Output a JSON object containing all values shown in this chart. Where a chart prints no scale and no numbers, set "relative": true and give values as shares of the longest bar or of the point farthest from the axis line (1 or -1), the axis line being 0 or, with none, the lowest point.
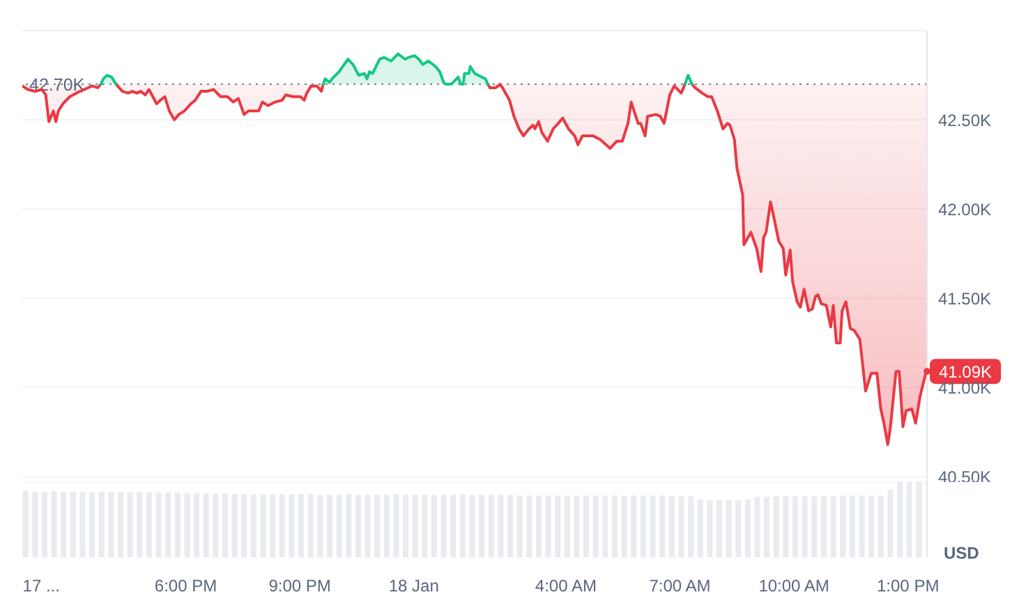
{
  "chart_data": [
    {
      "type": "line",
      "xlim": [
        "--01-17T13:42",
        "--01-18T13:30"
      ],
      "ylim": [
        40.47,
        43.0
      ],
      "yticks": [
        {
          "value": 40.5,
          "label": "40.50K"
        },
        {
          "value": 41,
          "label": "41.00K"
        },
        {
          "value": 41.5,
          "label": "41.50K"
        },
        {
          "value": 42,
          "label": "42.00K"
        },
        {
          "value": 42.5,
          "label": "42.50K"
        }
      ],
      "grid": "y",
      "tick_labels": "y",
      "series": [
        {
          "color": "#ea3943",
          "x": [
            "--01-17T13:42",
            "--01-17T13:51",
            "--01-17T14:02",
            "--01-17T14:13",
            "--01-17T14:19",
            "--01-17T14:24",
            "--01-17T14:31",
            "--01-17T14:35",
            "--01-17T14:39",
            "--01-17T14:46",
            "--01-17T14:57",
            "--01-17T15:13",
            "--01-17T15:26",
            "--01-17T15:32",
            "--01-17T15:41",
            "--01-17T15:46",
            "--01-17T15:50",
            "--01-17T16:10",
            "--01-17T16:20",
            "--01-17T16:29",
            "--01-17T16:36",
            "--01-17T16:43",
            "--01-17T16:49",
            "--01-17T16:56",
            "--01-17T17:02",
            "--01-17T17:14",
            "--01-17T17:20",
            "--01-17T17:27",
            "--01-17T17:34",
            "--01-17T17:42",
            "--01-17T17:49",
            "--01-17T17:58",
            "--01-17T18:08",
            "--01-17T18:15",
            "--01-17T18:24",
            "--01-17T18:33",
            "--01-17T18:44",
            "--01-17T18:55",
            "--01-17T19:06",
            "--01-17T19:15",
            "--01-17T19:23",
            "--01-17T19:32",
            "--01-17T19:39",
            "--01-17T19:55",
            "--01-17T20:01",
            "--01-17T20:10",
            "--01-17T20:21",
            "--01-17T20:32",
            "--01-17T20:38",
            "--01-17T20:49",
            "--01-17T21:01",
            "--01-17T21:07",
            "--01-17T21:11",
            "--01-17T21:18",
            "--01-17T21:27",
            "--01-17T21:34",
            "--01-17T21:37",
            "--01-17T21:40",
            "--01-18T01:57",
            "--01-18T02:00",
            "--01-18T02:09",
            "--01-18T02:13",
            "--01-18T02:16",
            "--01-18T02:18",
            "--01-18T02:20",
            "--01-18T02:31",
            "--01-18T02:38",
            "--01-18T02:46",
            "--01-18T02:53",
            "--01-18T03:02",
            "--01-18T03:08",
            "--01-18T03:11",
            "--01-18T03:17",
            "--01-18T03:22",
            "--01-18T03:31",
            "--01-18T03:40",
            "--01-18T03:48",
            "--01-18T03:55",
            "--01-18T04:04",
            "--01-18T04:14",
            "--01-18T04:19",
            "--01-18T04:26",
            "--01-18T04:32",
            "--01-18T04:43",
            "--01-18T04:54",
            "--01-18T05:10",
            "--01-18T05:20",
            "--01-18T05:29",
            "--01-18T05:38",
            "--01-18T05:43",
            "--01-18T05:54",
            "--01-18T05:58",
            "--01-18T06:05",
            "--01-18T06:09",
            "--01-18T06:22",
            "--01-18T06:29",
            "--01-18T06:35",
            "--01-18T06:44",
            "--01-18T06:51",
            "--01-18T07:02",
            "--01-18T07:08",
            "--01-18T07:13",
            "--01-18T07:19",
            "--01-18T07:24",
            "--01-18T07:35",
            "--01-18T07:44",
            "--01-18T07:50",
            "--01-18T07:59",
            "--01-18T08:08",
            "--01-18T08:15",
            "--01-18T08:19",
            "--01-18T08:26",
            "--01-18T08:30",
            "--01-18T08:39",
            "--01-18T08:41",
            "--01-18T08:52",
            "--01-18T09:01",
            "--01-18T09:08",
            "--01-18T09:12",
            "--01-18T09:16",
            "--01-18T09:23",
            "--01-18T09:29",
            "--01-18T09:36",
            "--01-18T09:43",
            "--01-18T09:47",
            "--01-18T09:54",
            "--01-18T09:58",
            "--01-18T10:05",
            "--01-18T10:10",
            "--01-18T10:16",
            "--01-18T10:23",
            "--01-18T10:29",
            "--01-18T10:34",
            "--01-18T10:38",
            "--01-18T10:43",
            "--01-18T10:51",
            "--01-18T10:58",
            "--01-18T11:02",
            "--01-18T11:07",
            "--01-18T11:13",
            "--01-18T11:16",
            "--01-18T11:22",
            "--01-18T11:29",
            "--01-18T11:35",
            "--01-18T11:44",
            "--01-18T11:53",
            "--01-18T12:02",
            "--01-18T12:11",
            "--01-18T12:17",
            "--01-18T12:22",
            "--01-18T12:28",
            "--01-18T12:32",
            "--01-18T12:41",
            "--01-18T12:46",
            "--01-18T12:52",
            "--01-18T12:57",
            "--01-18T13:06",
            "--01-18T13:12",
            "--01-18T13:19",
            "--01-18T13:28",
            "--01-18T13:30"
          ],
          "values": [
            42.69,
            42.67,
            42.66,
            42.67,
            42.64,
            42.49,
            42.55,
            42.49,
            42.55,
            42.59,
            42.63,
            42.66,
            42.68,
            42.69,
            42.68,
            42.7,
            null,
            42.7,
            42.66,
            42.65,
            42.66,
            42.65,
            42.66,
            42.64,
            42.67,
            42.59,
            42.61,
            42.63,
            42.55,
            42.5,
            42.53,
            42.55,
            42.59,
            42.61,
            42.66,
            42.66,
            42.67,
            42.63,
            42.63,
            42.6,
            42.62,
            42.53,
            42.55,
            42.55,
            42.6,
            42.58,
            42.6,
            42.61,
            42.64,
            42.63,
            42.63,
            42.61,
            42.65,
            42.69,
            42.69,
            42.66,
            42.7,
            null,
            42.7,
            42.68,
            42.68,
            42.69,
            42.7,
            42.69,
            42.68,
            42.61,
            42.52,
            42.45,
            42.41,
            42.45,
            42.47,
            42.45,
            42.49,
            42.43,
            42.38,
            42.45,
            42.48,
            42.51,
            42.45,
            42.41,
            42.36,
            42.41,
            42.41,
            42.41,
            42.39,
            42.34,
            42.38,
            42.38,
            42.48,
            42.6,
            42.48,
            42.48,
            42.41,
            42.52,
            42.53,
            42.52,
            42.48,
            42.64,
            42.69,
            42.65,
            42.7,
            null,
            42.7,
            42.68,
            42.65,
            42.63,
            42.63,
            42.55,
            42.45,
            42.48,
            42.47,
            42.39,
            42.23,
            42.08,
            41.8,
            41.87,
            41.78,
            41.65,
            41.84,
            41.87,
            42.04,
            41.94,
            41.82,
            41.78,
            41.63,
            41.77,
            41.59,
            41.48,
            41.45,
            41.55,
            41.43,
            41.44,
            41.51,
            41.52,
            41.47,
            41.46,
            41.34,
            41.46,
            41.25,
            41.25,
            41.43,
            41.48,
            41.33,
            41.32,
            41.27,
            40.98,
            41.08,
            41.08,
            40.88,
            40.8,
            40.68,
            40.77,
            41.09,
            41.09,
            40.78,
            40.87,
            40.88,
            40.8,
            40.95,
            41.08,
            41.09
          ],
          "lower": [
            42.69,
            42.67,
            42.66,
            42.67,
            42.64,
            42.49,
            42.55,
            42.49,
            42.55,
            42.59,
            42.63,
            42.66,
            42.68,
            42.69,
            42.68,
            42.7,
            null,
            42.7,
            42.66,
            42.65,
            42.66,
            42.65,
            42.66,
            42.64,
            42.67,
            42.59,
            42.61,
            42.63,
            42.55,
            42.5,
            42.53,
            42.55,
            42.59,
            42.61,
            42.66,
            42.66,
            42.67,
            42.63,
            42.63,
            42.6,
            42.62,
            42.53,
            42.55,
            42.55,
            42.6,
            42.58,
            42.6,
            42.61,
            42.64,
            42.63,
            42.63,
            42.61,
            42.65,
            42.69,
            42.69,
            42.66,
            42.7,
            null,
            42.7,
            42.68,
            42.68,
            42.69,
            42.7,
            42.69,
            42.68,
            42.61,
            42.52,
            42.45,
            42.41,
            42.45,
            42.47,
            42.45,
            42.49,
            42.43,
            42.38,
            42.45,
            42.48,
            42.51,
            42.45,
            42.41,
            42.36,
            42.41,
            42.41,
            42.41,
            42.39,
            42.34,
            42.38,
            42.38,
            42.48,
            42.6,
            42.48,
            42.48,
            42.41,
            42.52,
            42.53,
            42.52,
            42.48,
            42.64,
            42.69,
            42.65,
            42.7,
            null,
            42.7,
            42.68,
            42.65,
            42.63,
            42.63,
            42.55,
            42.45,
            42.48,
            42.47,
            42.39,
            42.23,
            42.08,
            41.8,
            41.87,
            41.78,
            41.65,
            41.84,
            41.87,
            42.04,
            41.94,
            41.82,
            41.78,
            41.63,
            41.77,
            41.59,
            41.48,
            41.45,
            41.55,
            41.43,
            41.44,
            41.51,
            41.52,
            41.47,
            41.46,
            41.34,
            41.46,
            41.25,
            41.25,
            41.43,
            41.48,
            41.33,
            41.32,
            41.27,
            40.98,
            41.08,
            41.08,
            40.88,
            40.8,
            40.68,
            40.77,
            41.09,
            41.09,
            40.78,
            40.87,
            40.88,
            40.8,
            40.95,
            41.08,
            41.09
          ],
          "upper": [
            42.7,
            42.7,
            42.7,
            42.7,
            42.7,
            42.7,
            42.7,
            42.7,
            42.7,
            42.7,
            42.7,
            42.7,
            42.7,
            42.7,
            42.7,
            42.7,
            null,
            42.7,
            42.7,
            42.7,
            42.7,
            42.7,
            42.7,
            42.7,
            42.7,
            42.7,
            42.7,
            42.7,
            42.7,
            42.7,
            42.7,
            42.7,
            42.7,
            42.7,
            42.7,
            42.7,
            42.7,
            42.7,
            42.7,
            42.7,
            42.7,
            42.7,
            42.7,
            42.7,
            42.7,
            42.7,
            42.7,
            42.7,
            42.7,
            42.7,
            42.7,
            42.7,
            42.7,
            42.7,
            42.7,
            42.7,
            42.7,
            null,
            42.7,
            42.7,
            42.7,
            42.7,
            42.7,
            42.7,
            42.7,
            42.7,
            42.7,
            42.7,
            42.7,
            42.7,
            42.7,
            42.7,
            42.7,
            42.7,
            42.7,
            42.7,
            42.7,
            42.7,
            42.7,
            42.7,
            42.7,
            42.7,
            42.7,
            42.7,
            42.7,
            42.7,
            42.7,
            42.7,
            42.7,
            42.7,
            42.7,
            42.7,
            42.7,
            42.7,
            42.7,
            42.7,
            42.7,
            42.7,
            42.7,
            42.7,
            42.7,
            null,
            42.7,
            42.7,
            42.7,
            42.7,
            42.7,
            42.7,
            42.7,
            42.7,
            42.7,
            42.7,
            42.7,
            42.7,
            42.7,
            42.7,
            42.7,
            42.7,
            42.7,
            42.7,
            42.7,
            42.7,
            42.7,
            42.7,
            42.7,
            42.7,
            42.7,
            42.7,
            42.7,
            42.7,
            42.7,
            42.7,
            42.7,
            42.7,
            42.7,
            42.7,
            42.7,
            42.7,
            42.7,
            42.7,
            42.7,
            42.7,
            42.7,
            42.7,
            42.7,
            42.7,
            42.7,
            42.7,
            42.7,
            42.7,
            42.7,
            42.7,
            42.7,
            42.7,
            42.7,
            42.7,
            42.7,
            42.7,
            42.7,
            42.7,
            42.7
          ]
        },
        {
          "color": "#16c784",
          "x": [
            "--01-17T15:46",
            "--01-17T15:50",
            "--01-17T15:56",
            "--01-17T16:03",
            "--01-17T16:10",
            "--01-17T16:20",
            "--01-17T21:37",
            "--01-17T21:40",
            "--01-17T21:47",
            "--01-17T21:51",
            "--01-17T22:02",
            "--01-17T22:16",
            "--01-17T22:24",
            "--01-17T22:33",
            "--01-17T22:42",
            "--01-17T22:46",
            "--01-17T22:50",
            "--01-17T22:55",
            "--01-17T23:06",
            "--01-17T23:13",
            "--01-17T23:24",
            "--01-17T23:35",
            "--01-17T23:46",
            "--01-17T23:52",
            "--01-18T00:01",
            "--01-18T00:08",
            "--01-18T00:14",
            "--01-18T00:23",
            "--01-18T00:34",
            "--01-18T00:41",
            "--01-18T00:47",
            "--01-18T00:50",
            "--01-18T00:54",
            "--01-18T00:59",
            "--01-18T01:10",
            "--01-18T01:14",
            "--01-18T01:16",
            "--01-18T01:18",
            "--01-18T01:20",
            "--01-18T01:27",
            "--01-18T01:29",
            "--01-18T01:36",
            "--01-18T01:47",
            "--01-18T01:53",
            "--01-18T01:57",
            "--01-18T02:00",
            "--01-18T07:08",
            "--01-18T07:13",
            "--01-18T07:19"
          ],
          "values": [
            42.7,
            42.73,
            42.75,
            42.74,
            42.7,
            null,
            42.7,
            42.73,
            42.71,
            42.73,
            42.77,
            42.84,
            42.81,
            42.75,
            42.76,
            42.73,
            42.77,
            42.76,
            42.84,
            42.85,
            42.83,
            42.87,
            42.84,
            42.85,
            42.86,
            42.84,
            42.81,
            42.83,
            42.8,
            42.77,
            42.71,
            42.7,
            42.7,
            42.7,
            42.74,
            42.7,
            42.7,
            42.7,
            42.76,
            42.76,
            42.8,
            42.76,
            42.74,
            42.73,
            42.7,
            null,
            42.7,
            42.75,
            42.7
          ],
          "lower": [
            42.7,
            42.7,
            42.7,
            42.7,
            42.7,
            null,
            42.7,
            42.7,
            42.7,
            42.7,
            42.7,
            42.7,
            42.7,
            42.7,
            42.7,
            42.7,
            42.7,
            42.7,
            42.7,
            42.7,
            42.7,
            42.7,
            42.7,
            42.7,
            42.7,
            42.7,
            42.7,
            42.7,
            42.7,
            42.7,
            42.7,
            42.7,
            42.7,
            42.7,
            42.7,
            42.7,
            42.7,
            42.7,
            42.7,
            42.7,
            42.7,
            42.7,
            42.7,
            42.7,
            42.7,
            null,
            null,
            null,
            null
          ],
          "upper": [
            42.7,
            42.73,
            42.75,
            42.74,
            42.7,
            null,
            42.7,
            42.73,
            42.71,
            42.73,
            42.77,
            42.84,
            42.81,
            42.75,
            42.76,
            42.73,
            42.77,
            42.76,
            42.84,
            42.85,
            42.83,
            42.87,
            42.84,
            42.85,
            42.86,
            42.84,
            42.81,
            42.83,
            42.8,
            42.77,
            42.71,
            42.7,
            42.7,
            42.7,
            42.74,
            42.7,
            42.7,
            42.7,
            42.76,
            42.76,
            42.8,
            42.76,
            42.74,
            42.73,
            42.7,
            null,
            null,
            null,
            null
          ]
        }
      ],
      "ref_lines": [
        {
          "axis": "y",
          "value": 42.7,
          "label": "42.70K",
          "line_style": "dotted",
          "color": "#808a9d"
        }
      ],
      "annotations": [
        {
          "text": "41.09K",
          "x": "--01-18T13:30",
          "y": 41.09
        }
      ]
    },
    {
      "type": "bar",
      "relative": true,
      "xlim": [
        "--01-17T13:42",
        "--01-18T13:30"
      ],
      "tick_labels": "x",
      "xticks": [
        {
          "value": "--01-17T14:12",
          "label": "17 ..."
        },
        {
          "value": "--01-17T18:00",
          "label": "6:00 PM"
        },
        {
          "value": "--01-17T21:00",
          "label": "9:00 PM"
        },
        {
          "value": "--01-18T00:00",
          "label": "18 Jan"
        },
        {
          "value": "--01-18T04:00",
          "label": "4:00 AM"
        },
        {
          "value": "--01-18T07:00",
          "label": "7:00 AM"
        },
        {
          "value": "--01-18T10:00",
          "label": "10:00 AM"
        },
        {
          "value": "--01-18T13:00",
          "label": "1:00 PM"
        }
      ],
      "x": [
        "--01-17T13:48",
        "--01-17T14:03",
        "--01-17T14:18",
        "--01-17T14:33",
        "--01-17T14:48",
        "--01-17T15:03",
        "--01-17T15:18",
        "--01-17T15:33",
        "--01-17T15:48",
        "--01-17T16:03",
        "--01-17T16:18",
        "--01-17T16:33",
        "--01-17T16:48",
        "--01-17T17:03",
        "--01-17T17:18",
        "--01-17T17:33",
        "--01-17T17:48",
        "--01-17T18:03",
        "--01-17T18:18",
        "--01-17T18:33",
        "--01-17T18:48",
        "--01-17T19:03",
        "--01-17T19:18",
        "--01-17T19:33",
        "--01-17T19:48",
        "--01-17T20:03",
        "--01-17T20:18",
        "--01-17T20:33",
        "--01-17T20:48",
        "--01-17T21:03",
        "--01-17T21:18",
        "--01-17T21:33",
        "--01-17T21:48",
        "--01-17T22:03",
        "--01-17T22:18",
        "--01-17T22:33",
        "--01-17T22:48",
        "--01-17T23:03",
        "--01-17T23:18",
        "--01-17T23:33",
        "--01-17T23:48",
        "--01-18T00:03",
        "--01-18T00:18",
        "--01-18T00:33",
        "--01-18T00:48",
        "--01-18T01:03",
        "--01-18T01:18",
        "--01-18T01:33",
        "--01-18T01:48",
        "--01-18T02:03",
        "--01-18T02:18",
        "--01-18T02:33",
        "--01-18T02:48",
        "--01-18T03:03",
        "--01-18T03:18",
        "--01-18T03:33",
        "--01-18T03:48",
        "--01-18T04:03",
        "--01-18T04:18",
        "--01-18T04:33",
        "--01-18T04:48",
        "--01-18T05:03",
        "--01-18T05:18",
        "--01-18T05:33",
        "--01-18T05:48",
        "--01-18T06:03",
        "--01-18T06:18",
        "--01-18T06:33",
        "--01-18T06:48",
        "--01-18T07:03",
        "--01-18T07:18",
        "--01-18T07:33",
        "--01-18T07:48",
        "--01-18T08:03",
        "--01-18T08:18",
        "--01-18T08:33",
        "--01-18T08:48",
        "--01-18T09:03",
        "--01-18T09:18",
        "--01-18T09:33",
        "--01-18T09:48",
        "--01-18T10:03",
        "--01-18T10:18",
        "--01-18T10:33",
        "--01-18T10:48",
        "--01-18T11:03",
        "--01-18T11:18",
        "--01-18T11:33",
        "--01-18T11:48",
        "--01-18T12:03",
        "--01-18T12:18",
        "--01-18T12:33",
        "--01-18T12:48",
        "--01-18T13:03",
        "--01-18T13:18"
      ],
      "color": "#e8ecf0",
      "values": [
        0.88,
        0.87,
        0.87,
        0.88,
        0.87,
        0.87,
        0.87,
        0.86,
        0.87,
        0.87,
        0.86,
        0.86,
        0.87,
        0.86,
        0.86,
        0.86,
        0.86,
        0.85,
        0.85,
        0.85,
        0.85,
        0.85,
        0.84,
        0.84,
        0.84,
        0.84,
        0.84,
        0.84,
        0.84,
        0.84,
        0.84,
        0.83,
        0.83,
        0.83,
        0.84,
        0.83,
        0.83,
        0.83,
        0.83,
        0.84,
        0.83,
        0.83,
        0.83,
        0.83,
        0.83,
        0.83,
        0.84,
        0.83,
        0.83,
        0.83,
        0.83,
        0.83,
        0.82,
        0.82,
        0.82,
        0.82,
        0.82,
        0.82,
        0.82,
        0.82,
        0.82,
        0.82,
        0.82,
        0.82,
        0.82,
        0.82,
        0.82,
        0.82,
        0.81,
        0.81,
        0.81,
        0.77,
        0.76,
        0.76,
        0.76,
        0.76,
        0.77,
        0.8,
        0.8,
        0.81,
        0.81,
        0.81,
        0.81,
        0.81,
        0.81,
        0.81,
        0.82,
        0.82,
        0.82,
        0.82,
        0.82,
        0.9,
        1.0,
        1.0,
        1.0
      ],
      "annotations": [
        "USD"
      ]
    }
  ]
}
